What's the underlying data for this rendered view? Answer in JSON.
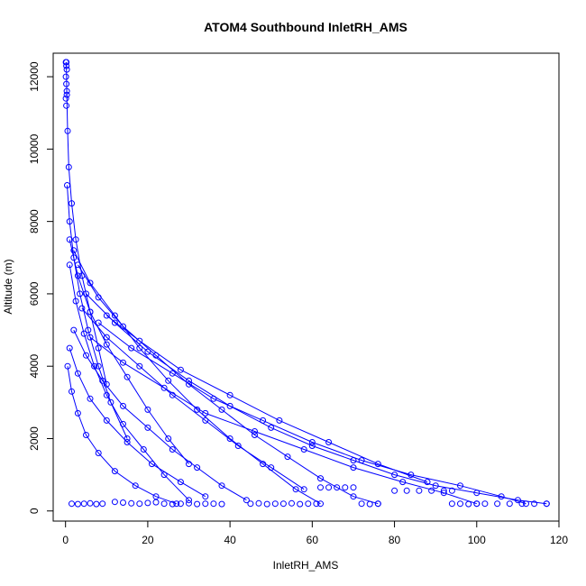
{
  "chart_data": {
    "type": "scatter",
    "title": "ATOM4 Southbound InletRH_AMS",
    "xlabel": "InletRH_AMS",
    "ylabel": "Altitude (m)",
    "xlim": [
      -3,
      120
    ],
    "ylim": [
      -280,
      12650
    ],
    "x_ticks": [
      0,
      20,
      40,
      60,
      80,
      100,
      120
    ],
    "y_ticks": [
      0,
      2000,
      4000,
      6000,
      8000,
      10000,
      12000
    ],
    "x_tick_labels": [
      "0",
      "20",
      "40",
      "60",
      "80",
      "100",
      "120"
    ],
    "y_tick_labels": [
      "0",
      "2000",
      "4000",
      "6000",
      "8000",
      "10000",
      "12000"
    ],
    "grid": false,
    "legend": "none",
    "marker": "open-circle",
    "connected": true,
    "color": "#0000ff",
    "series": [
      {
        "profiles": [
          {
            "x": [
              0.2,
              0.3,
              0.5,
              0.8,
              1.5,
              2.5,
              4,
              6,
              8,
              10
            ],
            "y": [
              12400,
              11500,
              10500,
              9500,
              8500,
              7500,
              6500,
              5500,
              4500,
              3500
            ]
          },
          {
            "x": [
              1,
              3,
              6,
              10,
              15,
              20,
              25,
              30
            ],
            "y": [
              7500,
              6500,
              5500,
              4600,
              3700,
              2800,
              2000,
              1300
            ]
          },
          {
            "x": [
              2,
              6,
              12,
              18,
              25,
              32,
              40,
              48,
              56,
              62
            ],
            "y": [
              7200,
              6300,
              5400,
              4500,
              3600,
              2800,
              2000,
              1300,
              600,
              200
            ]
          },
          {
            "x": [
              3,
              8,
              14,
              22,
              30,
              38,
              46,
              54,
              62,
              70,
              76
            ],
            "y": [
              6800,
              5900,
              5100,
              4300,
              3500,
              2800,
              2100,
              1500,
              900,
              400,
              200
            ]
          },
          {
            "x": [
              5,
              12,
              20,
              30,
              40,
              50,
              60,
              70,
              80,
              90,
              100,
              110,
              117
            ],
            "y": [
              6000,
              5200,
              4400,
              3600,
              2900,
              2300,
              1800,
              1400,
              1000,
              700,
              500,
              300,
              200
            ]
          },
          {
            "x": [
              4,
              10,
              18,
              26,
              34,
              42,
              50,
              58
            ],
            "y": [
              5600,
              4800,
              4000,
              3200,
              2500,
              1800,
              1200,
              600
            ]
          },
          {
            "x": [
              2,
              5,
              9,
              14,
              20,
              26,
              32,
              38,
              44
            ],
            "y": [
              5000,
              4300,
              3600,
              2900,
              2300,
              1700,
              1200,
              700,
              300
            ]
          },
          {
            "x": [
              1,
              3,
              6,
              10,
              15,
              21,
              28,
              34
            ],
            "y": [
              4500,
              3800,
              3100,
              2500,
              1900,
              1300,
              800,
              400
            ]
          },
          {
            "x": [
              0.5,
              1.5,
              3,
              5,
              8,
              12,
              17,
              22,
              27
            ],
            "y": [
              4000,
              3300,
              2700,
              2100,
              1600,
              1100,
              700,
              400,
              200
            ]
          },
          {
            "x": [
              8,
              16,
              26,
              36,
              48,
              60,
              72,
              84,
              96,
              106,
              112
            ],
            "y": [
              5200,
              4500,
              3800,
              3100,
              2500,
              1900,
              1400,
              1000,
              700,
              400,
              200
            ]
          },
          {
            "x": [
              6,
              14,
              24,
              34,
              46,
              58,
              70,
              82,
              92,
              100
            ],
            "y": [
              4800,
              4100,
              3400,
              2700,
              2200,
              1700,
              1200,
              800,
              500,
              200
            ]
          },
          {
            "x": [
              10,
              18,
              28,
              40,
              52,
              64,
              76,
              88
            ],
            "y": [
              5400,
              4700,
              3900,
              3200,
              2500,
              1900,
              1300,
              800
            ]
          },
          {
            "x": [
              1,
              2.5,
              4.5,
              7,
              10,
              14,
              19,
              24,
              30
            ],
            "y": [
              6800,
              5800,
              4900,
              4000,
              3200,
              2400,
              1700,
              1000,
              300
            ]
          },
          {
            "x": [
              0.4,
              1,
              2,
              3.5,
              5.5,
              8,
              11,
              15
            ],
            "y": [
              9000,
              8000,
              7000,
              6000,
              5000,
              4000,
              3000,
              2000
            ]
          }
        ],
        "low_level_clusters": [
          {
            "x": [
              1.5,
              3,
              4.5,
              6,
              7.5,
              9
            ],
            "y": [
              200,
              190,
              200,
              210,
              190,
              200
            ]
          },
          {
            "x": [
              12,
              14,
              16,
              18,
              20,
              22
            ],
            "y": [
              250,
              230,
              210,
              200,
              220,
              240
            ]
          },
          {
            "x": [
              24,
              26,
              28,
              30,
              32,
              34,
              36,
              38
            ],
            "y": [
              200,
              190,
              200,
              210,
              190,
              200,
              200,
              190
            ]
          },
          {
            "x": [
              45,
              47,
              49,
              51,
              53,
              55,
              57,
              59,
              61
            ],
            "y": [
              200,
              210,
              190,
              200,
              200,
              210,
              190,
              200,
              200
            ]
          },
          {
            "x": [
              62,
              64,
              66,
              68,
              70
            ],
            "y": [
              650,
              650,
              650,
              650,
              650
            ]
          },
          {
            "x": [
              72,
              74,
              76
            ],
            "y": [
              200,
              190,
              200
            ]
          },
          {
            "x": [
              80,
              83,
              86,
              89,
              92,
              94
            ],
            "y": [
              560,
              560,
              560,
              560,
              560,
              560
            ]
          },
          {
            "x": [
              94,
              96,
              98,
              100,
              102
            ],
            "y": [
              200,
              200,
              190,
              200,
              200
            ]
          },
          {
            "x": [
              105,
              108,
              111,
              114,
              117
            ],
            "y": [
              200,
              200,
              200,
              200,
              200
            ]
          },
          {
            "x": [
              0.1,
              0.2,
              0.3,
              0.1,
              0.2,
              0.3,
              0.1,
              0.2
            ],
            "y": [
              12400,
              12300,
              12200,
              12000,
              11800,
              11600,
              11400,
              11200
            ]
          }
        ]
      }
    ]
  }
}
